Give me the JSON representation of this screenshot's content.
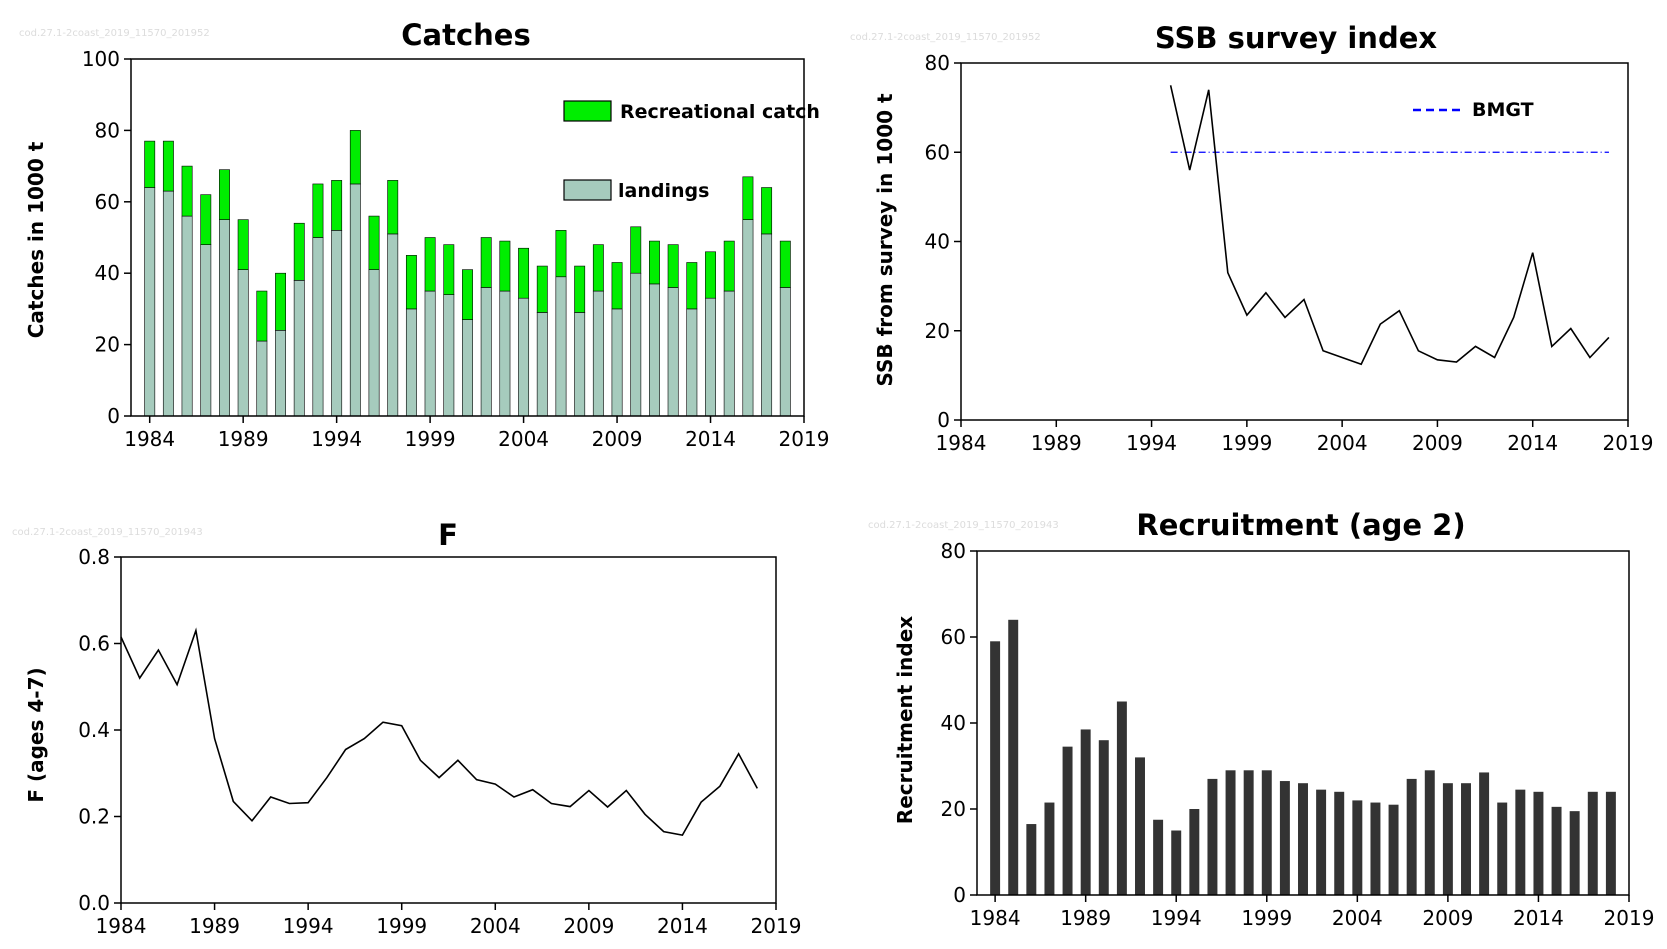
{
  "chart_data": [
    {
      "id": "catches",
      "type": "bar",
      "stacked": true,
      "title": "Catches",
      "xlabel": "",
      "ylabel": "Catches in 1000 t",
      "watermark": "cod.27.1-2coast_2019_11570_201952",
      "xlim": [
        1983,
        2019
      ],
      "ylim": [
        0,
        100
      ],
      "xticks": [
        1984,
        1989,
        1994,
        1999,
        2004,
        2009,
        2014,
        2019
      ],
      "yticks": [
        0,
        20,
        40,
        60,
        80,
        100
      ],
      "legend_position": "top-right",
      "x": [
        1984,
        1985,
        1986,
        1987,
        1988,
        1989,
        1990,
        1991,
        1992,
        1993,
        1994,
        1995,
        1996,
        1997,
        1998,
        1999,
        2000,
        2001,
        2002,
        2003,
        2004,
        2005,
        2006,
        2007,
        2008,
        2009,
        2010,
        2011,
        2012,
        2013,
        2014,
        2015,
        2016,
        2017,
        2018
      ],
      "series": [
        {
          "name": "landings",
          "color": "#a6cbbd",
          "values": [
            64,
            63,
            56,
            48,
            55,
            41,
            21,
            24,
            38,
            50,
            52,
            65,
            41,
            51,
            30,
            35,
            34,
            27,
            36,
            35,
            33,
            29,
            39,
            29,
            35,
            30,
            40,
            37,
            36,
            30,
            33,
            35,
            55,
            51,
            36
          ]
        },
        {
          "name": "Recreational catch",
          "color": "#00ee00",
          "values": [
            13,
            14,
            14,
            14,
            14,
            14,
            14,
            16,
            16,
            15,
            14,
            15,
            15,
            15,
            15,
            15,
            14,
            14,
            14,
            14,
            14,
            13,
            13,
            13,
            13,
            13,
            13,
            12,
            12,
            13,
            13,
            14,
            12,
            13,
            13
          ]
        }
      ]
    },
    {
      "id": "ssb",
      "type": "line",
      "title": "SSB survey index",
      "xlabel": "",
      "ylabel": "SSB from survey in 1000 t",
      "watermark": "cod.27.1-2coast_2019_11570_201952",
      "xlim": [
        1984,
        2019
      ],
      "ylim": [
        0,
        80
      ],
      "xticks": [
        1984,
        1989,
        1994,
        1999,
        2004,
        2009,
        2014,
        2019
      ],
      "yticks": [
        0,
        20,
        40,
        60,
        80
      ],
      "legend_position": "top-right",
      "series": [
        {
          "name": "",
          "color": "#000000",
          "x": [
            1995,
            1996,
            1997,
            1998,
            1999,
            2000,
            2001,
            2002,
            2003,
            2004,
            2005,
            2006,
            2007,
            2008,
            2009,
            2010,
            2011,
            2012,
            2013,
            2014,
            2015,
            2016,
            2017,
            2018
          ],
          "values": [
            75,
            56,
            74,
            33,
            23.5,
            28.5,
            23,
            27,
            15.5,
            14,
            12.5,
            21.5,
            24.5,
            15.5,
            13.5,
            13,
            16.5,
            14,
            23,
            37.5,
            16.5,
            20.5,
            14,
            18.5
          ]
        }
      ],
      "reference_lines": [
        {
          "name": "BMGT",
          "value": 60,
          "x_from": 1995,
          "x_to": 2018,
          "color": "#0000ff",
          "style": "dashed"
        }
      ]
    },
    {
      "id": "f",
      "type": "line",
      "title": "F",
      "xlabel": "",
      "ylabel": "F (ages 4-7)",
      "watermark": "cod.27.1-2coast_2019_11570_201943",
      "xlim": [
        1984,
        2019
      ],
      "ylim": [
        0,
        0.8
      ],
      "xticks": [
        1984,
        1989,
        1994,
        1999,
        2004,
        2009,
        2014,
        2019
      ],
      "yticks": [
        0,
        0.2,
        0.4,
        0.6,
        0.8
      ],
      "series": [
        {
          "name": "",
          "color": "#000000",
          "x": [
            1984,
            1985,
            1986,
            1987,
            1988,
            1989,
            1990,
            1991,
            1992,
            1993,
            1994,
            1995,
            1996,
            1997,
            1998,
            1999,
            2000,
            2001,
            2002,
            2003,
            2004,
            2005,
            2006,
            2007,
            2008,
            2009,
            2010,
            2011,
            2012,
            2013,
            2014,
            2015,
            2016,
            2017,
            2018
          ],
          "values": [
            0.615,
            0.52,
            0.585,
            0.505,
            0.63,
            0.38,
            0.235,
            0.19,
            0.245,
            0.23,
            0.232,
            0.29,
            0.355,
            0.38,
            0.418,
            0.41,
            0.33,
            0.29,
            0.33,
            0.285,
            0.275,
            0.245,
            0.262,
            0.23,
            0.223,
            0.26,
            0.222,
            0.26,
            0.205,
            0.165,
            0.157,
            0.233,
            0.27,
            0.345,
            0.265
          ]
        }
      ]
    },
    {
      "id": "recruitment",
      "type": "bar",
      "title": "Recruitment (age 2)",
      "xlabel": "",
      "ylabel": "Recruitment index",
      "watermark": "cod.27.1-2coast_2019_11570_201943",
      "xlim": [
        1983,
        2019
      ],
      "ylim": [
        0,
        80
      ],
      "xticks": [
        1984,
        1989,
        1994,
        1999,
        2004,
        2009,
        2014,
        2019
      ],
      "yticks": [
        0,
        20,
        40,
        60,
        80
      ],
      "x": [
        1984,
        1985,
        1986,
        1987,
        1988,
        1989,
        1990,
        1991,
        1992,
        1993,
        1994,
        1995,
        1996,
        1997,
        1998,
        1999,
        2000,
        2001,
        2002,
        2003,
        2004,
        2005,
        2006,
        2007,
        2008,
        2009,
        2010,
        2011,
        2012,
        2013,
        2014,
        2015,
        2016,
        2017,
        2018
      ],
      "series": [
        {
          "name": "",
          "color": "#333333",
          "values": [
            59,
            64,
            16.5,
            21.5,
            34.5,
            38.5,
            36,
            45,
            32,
            17.5,
            15,
            20,
            27,
            29,
            29,
            29,
            26.5,
            26,
            24.5,
            24,
            22,
            21.5,
            21,
            27,
            29,
            26,
            26,
            28.5,
            21.5,
            24.5,
            24,
            20.5,
            19.5,
            24,
            24
          ]
        }
      ]
    }
  ]
}
